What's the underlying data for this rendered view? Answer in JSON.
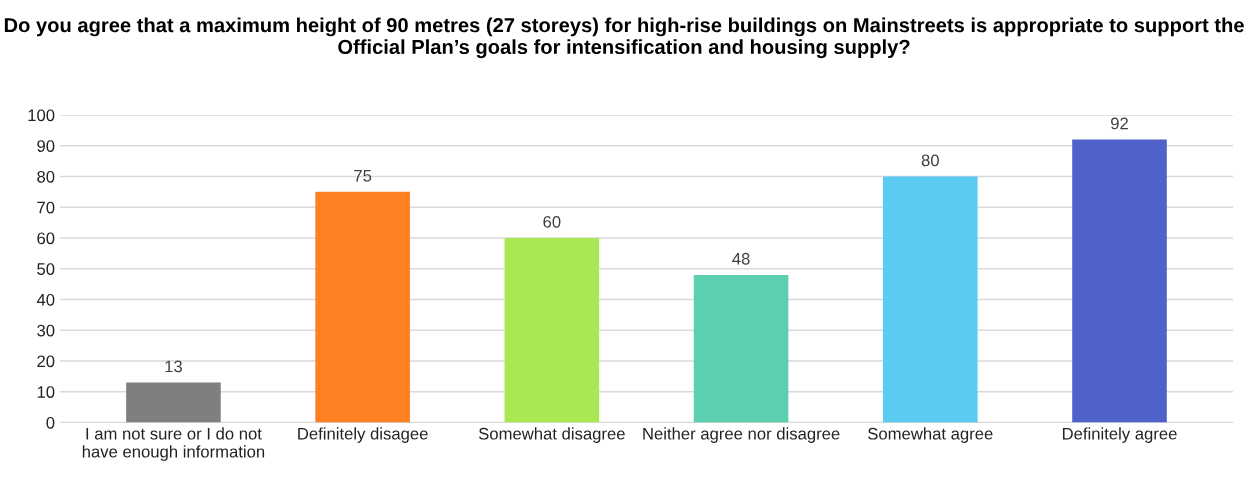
{
  "chart_data": {
    "type": "bar",
    "title": "Do you agree that a maximum height of 90 metres (27 storeys) for high-rise buildings on Mainstreets is appropriate to support the Official Plan’s goals for intensification and housing supply?",
    "categories": [
      "I am not sure or I do not have enough information",
      "Definitely disagee",
      "Somewhat disagree",
      "Neither agree nor disagree",
      "Somewhat agree",
      "Definitely agree"
    ],
    "values": [
      13,
      75,
      60,
      48,
      80,
      92
    ],
    "colors": [
      "#7f7f7f",
      "#fe8022",
      "#a9e852",
      "#5ccfb0",
      "#5bcbf2",
      "#4e62c9"
    ],
    "ylim": [
      0,
      100
    ],
    "yticks": [
      0,
      10,
      20,
      30,
      40,
      50,
      60,
      70,
      80,
      90,
      100
    ],
    "grid": "y",
    "data_labels": true
  }
}
